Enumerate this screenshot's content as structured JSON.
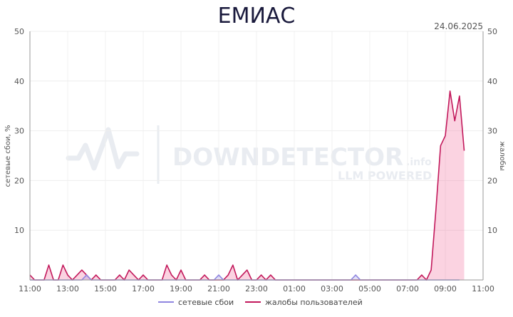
{
  "chart_data": {
    "type": "area",
    "title": "ЕМИАС",
    "date": "24.06.2025",
    "ylabel_left": "сетевые сбои, %",
    "ylabel_right": "жалобы",
    "ylim": [
      0,
      50
    ],
    "y_ticks": [
      "10",
      "20",
      "30",
      "40",
      "50"
    ],
    "x_ticks": [
      "11:00",
      "13:00",
      "15:00",
      "17:00",
      "19:00",
      "21:00",
      "23:00",
      "01:00",
      "03:00",
      "05:00",
      "07:00",
      "09:00",
      "11:00"
    ],
    "x_step_minutes": 15,
    "watermark": {
      "main": "DOWNDETECTOR",
      "suffix": ".info",
      "sub": "LLM POWERED"
    },
    "grid": true,
    "legend_position": "bottom-center",
    "series": [
      {
        "name": "сетевые сбои",
        "color": "#8f86e0",
        "values": [
          0,
          0,
          0,
          0,
          0,
          0,
          0,
          0,
          0,
          0,
          0,
          0,
          1,
          0,
          0,
          0,
          0,
          0,
          0,
          0,
          0,
          0,
          0,
          0,
          0,
          0,
          0,
          0,
          0,
          0,
          0,
          0,
          0,
          0,
          0,
          0,
          0,
          0,
          0,
          0,
          1,
          0,
          0,
          0,
          0,
          0,
          0,
          0,
          0,
          0,
          0,
          0,
          0,
          0,
          0,
          0,
          0,
          0,
          0,
          0,
          0,
          0,
          0,
          0,
          0,
          0,
          0,
          0,
          0,
          1,
          0,
          0,
          0,
          0,
          0,
          0,
          0,
          0,
          0,
          0,
          0,
          0,
          0,
          0,
          0,
          0,
          0,
          0,
          0,
          0,
          0,
          0
        ]
      },
      {
        "name": "жалобы пользователей",
        "color": "#c2185b",
        "values": [
          1,
          0,
          0,
          0,
          3,
          0,
          0,
          3,
          1,
          0,
          1,
          2,
          1,
          0,
          1,
          0,
          0,
          0,
          0,
          1,
          0,
          2,
          1,
          0,
          1,
          0,
          0,
          0,
          0,
          3,
          1,
          0,
          2,
          0,
          0,
          0,
          0,
          1,
          0,
          0,
          0,
          0,
          1,
          3,
          0,
          1,
          2,
          0,
          0,
          1,
          0,
          1,
          0,
          0,
          0,
          0,
          0,
          0,
          0,
          0,
          0,
          0,
          0,
          0,
          0,
          0,
          0,
          0,
          0,
          0,
          0,
          0,
          0,
          0,
          0,
          0,
          0,
          0,
          0,
          0,
          0,
          0,
          0,
          1,
          0,
          2,
          14,
          27,
          29,
          38,
          32,
          37,
          26
        ]
      }
    ]
  }
}
